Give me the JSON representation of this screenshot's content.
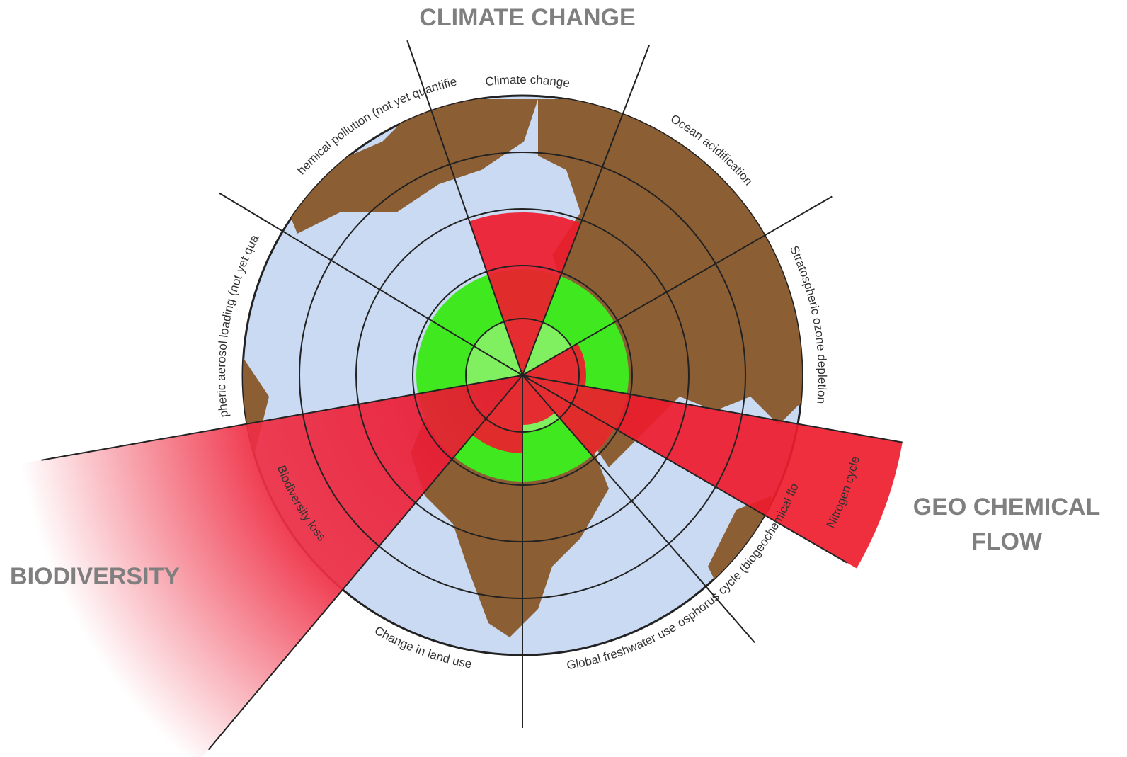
{
  "headings": {
    "climate_change": "CLIMATE CHANGE",
    "geo_chemical_flow": [
      "GEO CHEMICAL",
      "FLOW"
    ],
    "biodiversity": "BIODIVERSITY"
  },
  "segments": [
    {
      "label": "Climate change"
    },
    {
      "label": "Ocean acidification"
    },
    {
      "label": "Stratospheric ozone depletion"
    },
    {
      "label": "Nitrogen cycle"
    },
    {
      "label": "Phosphorus cycle (biogeochemical flow)"
    },
    {
      "label": "Global freshwater use"
    },
    {
      "label": "Change in land use"
    },
    {
      "label": "Biodiversity loss"
    },
    {
      "label": "Atmospheric aerosol loading (not yet quantified)"
    },
    {
      "label": "Chemical pollution (not yet quantified)"
    }
  ]
}
